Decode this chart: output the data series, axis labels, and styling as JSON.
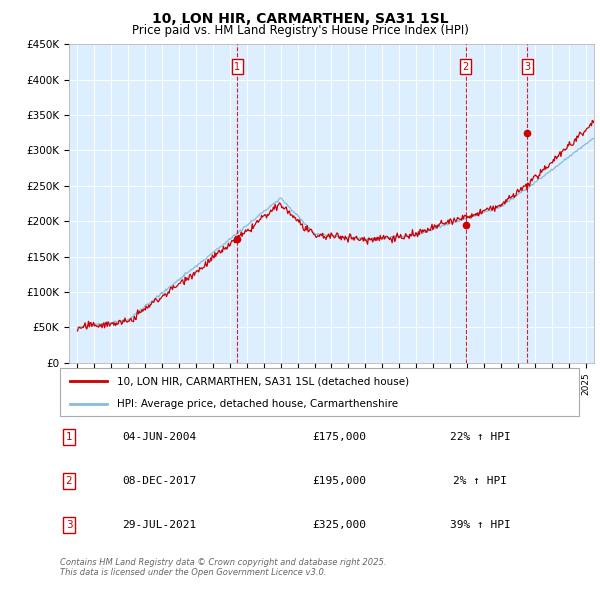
{
  "title": "10, LON HIR, CARMARTHEN, SA31 1SL",
  "subtitle": "Price paid vs. HM Land Registry's House Price Index (HPI)",
  "legend_line1": "10, LON HIR, CARMARTHEN, SA31 1SL (detached house)",
  "legend_line2": "HPI: Average price, detached house, Carmarthenshire",
  "footer": "Contains HM Land Registry data © Crown copyright and database right 2025.\nThis data is licensed under the Open Government Licence v3.0.",
  "purchases": [
    {
      "num": 1,
      "date": "04-JUN-2004",
      "price": 175000,
      "hpi_pct": "22% ↑ HPI",
      "year": 2004.43
    },
    {
      "num": 2,
      "date": "08-DEC-2017",
      "price": 195000,
      "hpi_pct": "2% ↑ HPI",
      "year": 2017.92
    },
    {
      "num": 3,
      "date": "29-JUL-2021",
      "price": 325000,
      "hpi_pct": "39% ↑ HPI",
      "year": 2021.57
    }
  ],
  "ylim": [
    0,
    450000
  ],
  "xlim": [
    1994.5,
    2025.5
  ],
  "yticks": [
    0,
    50000,
    100000,
    150000,
    200000,
    250000,
    300000,
    350000,
    400000,
    450000
  ],
  "ytick_labels": [
    "£0",
    "£50K",
    "£100K",
    "£150K",
    "£200K",
    "£250K",
    "£300K",
    "£350K",
    "£400K",
    "£450K"
  ],
  "bg_color": "#ddeeff",
  "line_color_red": "#cc0000",
  "line_color_blue": "#88bbdd",
  "grid_color": "#ffffff",
  "box_color": "#cc0000",
  "fig_width": 6.0,
  "fig_height": 5.9,
  "dpi": 100
}
